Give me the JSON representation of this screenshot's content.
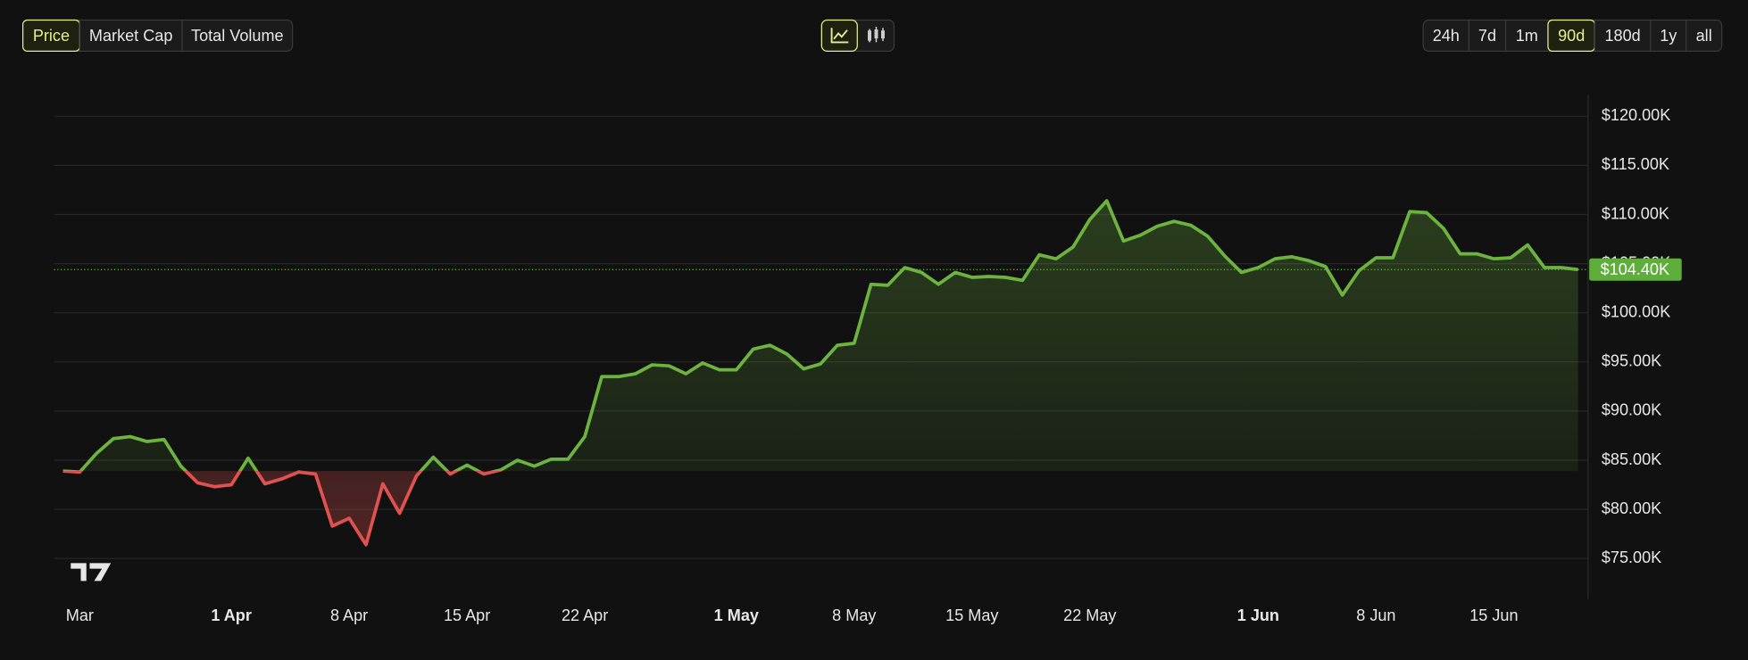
{
  "toolbar": {
    "metrics": [
      "Price",
      "Market Cap",
      "Total Volume"
    ],
    "active_metric": 0,
    "ranges": [
      "24h",
      "7d",
      "1m",
      "90d",
      "180d",
      "1y",
      "all"
    ],
    "active_range": 3
  },
  "chart_data": {
    "type": "line",
    "categories": [
      null,
      "Mar",
      null,
      null,
      null,
      null,
      null,
      null,
      null,
      null,
      "1 Apr",
      null,
      null,
      null,
      null,
      null,
      null,
      "8 Apr",
      null,
      null,
      null,
      null,
      null,
      null,
      "15 Apr",
      null,
      null,
      null,
      null,
      null,
      null,
      "22 Apr",
      null,
      null,
      null,
      null,
      null,
      null,
      null,
      null,
      "1 May",
      null,
      null,
      null,
      null,
      null,
      null,
      "8 May",
      null,
      null,
      null,
      null,
      null,
      null,
      "15 May",
      null,
      null,
      null,
      null,
      null,
      null,
      "22 May",
      null,
      null,
      null,
      null,
      null,
      null,
      null,
      null,
      null,
      "1 Jun",
      null,
      null,
      null,
      null,
      null,
      null,
      "8 Jun",
      null,
      null,
      null,
      null,
      null,
      null,
      "15 Jun",
      null,
      null,
      null,
      null,
      null
    ],
    "values": [
      83900,
      83800,
      85700,
      87200,
      87400,
      86900,
      87100,
      84400,
      82700,
      82300,
      82500,
      85200,
      82600,
      83100,
      83800,
      83600,
      78300,
      79100,
      76400,
      82600,
      79600,
      83400,
      85300,
      83600,
      84500,
      83600,
      84000,
      85000,
      84400,
      85100,
      85100,
      87400,
      93500,
      93500,
      93800,
      94700,
      94600,
      93800,
      94900,
      94200,
      94200,
      96300,
      96700,
      95800,
      94300,
      94800,
      96700,
      96900,
      102900,
      102800,
      104600,
      104100,
      102900,
      104100,
      103600,
      103700,
      103600,
      103300,
      105900,
      105500,
      106700,
      109500,
      111400,
      107300,
      107900,
      108800,
      109300,
      108900,
      107800,
      105800,
      104100,
      104600,
      105500,
      105700,
      105300,
      104700,
      101800,
      104300,
      105600,
      105600,
      110300,
      110200,
      108600,
      106000,
      106000,
      105500,
      105600,
      106900,
      104600,
      104600,
      104400
    ],
    "last_value_label": "$104.40K",
    "up_color": "#6db33f",
    "down_color": "#e05252",
    "ylim": [
      70900,
      122200
    ],
    "yticks": [
      {
        "value": 75000,
        "label": "$75.00K"
      },
      {
        "value": 80000,
        "label": "$80.00K"
      },
      {
        "value": 85000,
        "label": "$85.00K"
      },
      {
        "value": 90000,
        "label": "$90.00K"
      },
      {
        "value": 95000,
        "label": "$95.00K"
      },
      {
        "value": 100000,
        "label": "$100.00K"
      },
      {
        "value": 105000,
        "label": "$105.00K"
      },
      {
        "value": 110000,
        "label": "$110.00K"
      },
      {
        "value": 115000,
        "label": "$115.00K"
      },
      {
        "value": 120000,
        "label": "$120.00K"
      }
    ],
    "grid": true
  }
}
